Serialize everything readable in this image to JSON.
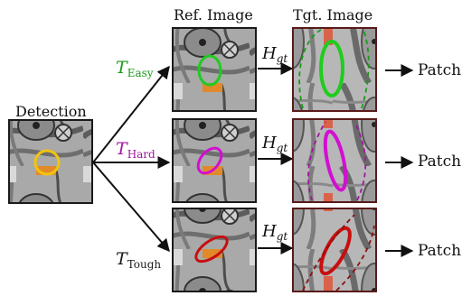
{
  "headers": {
    "detection": "Detection",
    "reference": "Ref. Image",
    "target": "Tgt. Image"
  },
  "rows": [
    {
      "t_label": "T",
      "t_sub": "Easy",
      "h_label": "H",
      "h_sub": "gt",
      "output": "Patch",
      "color": "#1fcc1f",
      "t_color": "#1a9a1a"
    },
    {
      "t_label": "T",
      "t_sub": "Hard",
      "h_label": "H",
      "h_sub": "gt",
      "output": "Patch",
      "color": "#d20fd2",
      "t_color": "#a0169f"
    },
    {
      "t_label": "T",
      "t_sub": "Tough",
      "h_label": "H",
      "h_sub": "gt",
      "output": "Patch",
      "color": "#c80e0e",
      "t_color": "#1a1a1a"
    }
  ],
  "detection_color": "#f2c40a"
}
